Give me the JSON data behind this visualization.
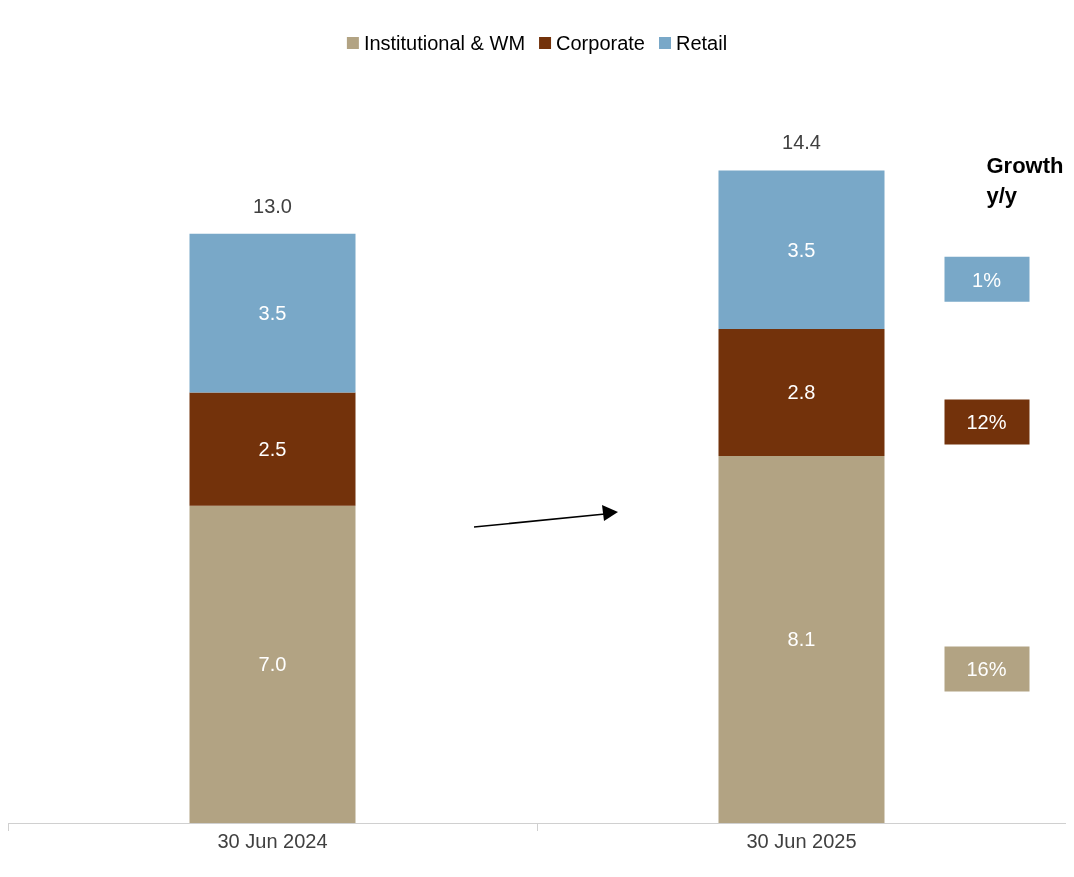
{
  "chart_data": {
    "type": "bar",
    "stacked": true,
    "categories": [
      "30 Jun 2024",
      "30 Jun 2025"
    ],
    "series": [
      {
        "name": "Institutional & WM",
        "color": "#b2a383",
        "values": [
          7.0,
          8.1
        ],
        "value_labels": [
          "7.0",
          "8.1"
        ]
      },
      {
        "name": "Corporate",
        "color": "#73320b",
        "values": [
          2.5,
          2.8
        ],
        "value_labels": [
          "2.5",
          "2.8"
        ]
      },
      {
        "name": "Retail",
        "color": "#79a8c8",
        "values": [
          3.5,
          3.5
        ],
        "value_labels": [
          "3.5",
          "3.5"
        ]
      }
    ],
    "totals": [
      "13.0",
      "14.4"
    ],
    "legend": "top",
    "annotations": [
      "Growth\ny/y",
      "1%",
      "12%",
      "16%"
    ]
  }
}
